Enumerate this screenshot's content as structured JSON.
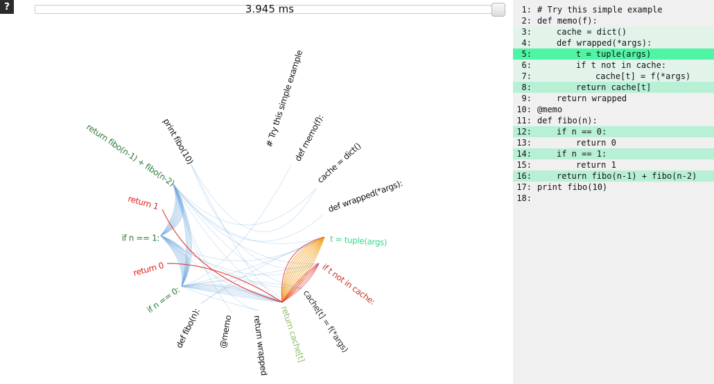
{
  "help": {
    "label": "?"
  },
  "timeline": {
    "value_label": "3.945 ms"
  },
  "colors": {
    "call_edge": "#6fa8dc",
    "return_edge": "#e03030",
    "hot_edge": "#f0a020",
    "highlight_strong": "#4ef5a4",
    "highlight_light": "#b8f0d6",
    "highlight_faint": "#e2f4ea",
    "panel_bg": "#f0f0f0"
  },
  "code_lines": [
    {
      "num": "1:",
      "indent": 0,
      "code": "# Try this simple example",
      "highlight": "none",
      "node_color": "#111111"
    },
    {
      "num": "2:",
      "indent": 0,
      "code": "def memo(f):",
      "highlight": "none",
      "node_color": "#111111"
    },
    {
      "num": "3:",
      "indent": 1,
      "code": "cache = dict()",
      "highlight": "faint",
      "node_color": "#111111"
    },
    {
      "num": "4:",
      "indent": 1,
      "code": "def wrapped(*args):",
      "highlight": "faint",
      "node_color": "#111111"
    },
    {
      "num": "5:",
      "indent": 2,
      "code": "t = tuple(args)",
      "highlight": "strong",
      "node_color": "#3dd68c"
    },
    {
      "num": "6:",
      "indent": 2,
      "code": "if t not in cache:",
      "highlight": "faint",
      "node_color": "#c0392b"
    },
    {
      "num": "7:",
      "indent": 3,
      "code": "cache[t] = f(*args)",
      "highlight": "faint",
      "node_color": "#333333"
    },
    {
      "num": "8:",
      "indent": 2,
      "code": "return cache[t]",
      "highlight": "light",
      "node_color": "#8cc06a"
    },
    {
      "num": "9:",
      "indent": 1,
      "code": "return wrapped",
      "highlight": "none",
      "node_color": "#111111"
    },
    {
      "num": "10:",
      "indent": 0,
      "code": "@memo",
      "highlight": "none",
      "node_color": "#111111"
    },
    {
      "num": "11:",
      "indent": 0,
      "code": "def fibo(n):",
      "highlight": "none",
      "node_color": "#111111"
    },
    {
      "num": "12:",
      "indent": 1,
      "code": "if n == 0:",
      "highlight": "light",
      "node_color": "#2a7a3c"
    },
    {
      "num": "13:",
      "indent": 2,
      "code": "return 0",
      "highlight": "none",
      "node_color": "#e02020"
    },
    {
      "num": "14:",
      "indent": 1,
      "code": "if n == 1:",
      "highlight": "light",
      "node_color": "#2a7a3c"
    },
    {
      "num": "15:",
      "indent": 2,
      "code": "return 1",
      "highlight": "none",
      "node_color": "#e02020"
    },
    {
      "num": "16:",
      "indent": 1,
      "code": "return fibo(n-1) + fibo(n-2)",
      "highlight": "light",
      "node_color": "#2a7a3c"
    },
    {
      "num": "17:",
      "indent": 0,
      "code": "print fibo(10)",
      "highlight": "none",
      "node_color": "#111111"
    },
    {
      "num": "18:",
      "indent": 0,
      "code": "",
      "highlight": "none",
      "node_color": "#111111"
    }
  ]
}
